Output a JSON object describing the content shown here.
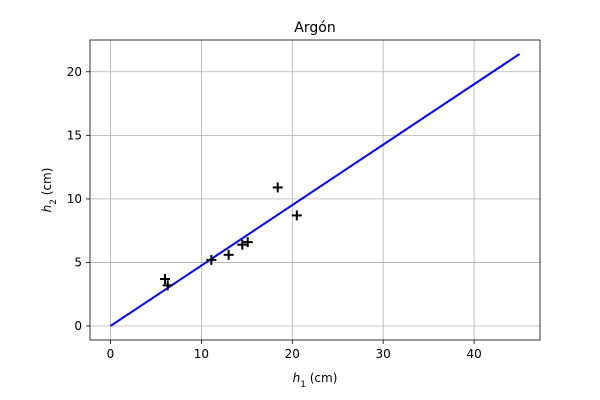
{
  "chart_data": {
    "type": "scatter",
    "title": "Argón",
    "xlabel": {
      "base": "h",
      "sub": "1",
      "unit": " (cm)"
    },
    "ylabel": {
      "base": "h",
      "sub": "2",
      "unit": " (cm)"
    },
    "xlim": [
      -2.25,
      47.25
    ],
    "ylim": [
      -1.1,
      22.5
    ],
    "xticks": [
      0,
      10,
      20,
      30,
      40
    ],
    "yticks": [
      0,
      5,
      10,
      15,
      20
    ],
    "grid": true,
    "series": [
      {
        "kind": "points",
        "marker": "+",
        "color": "#000000",
        "x": [
          6.0,
          6.3,
          11.1,
          13.0,
          14.5,
          15.1,
          18.4,
          20.5
        ],
        "y": [
          3.7,
          3.2,
          5.2,
          5.6,
          6.4,
          6.6,
          10.9,
          8.7
        ]
      },
      {
        "kind": "line",
        "color": "#0000ee",
        "x": [
          0,
          45
        ],
        "y": [
          0,
          21.4
        ]
      }
    ]
  }
}
